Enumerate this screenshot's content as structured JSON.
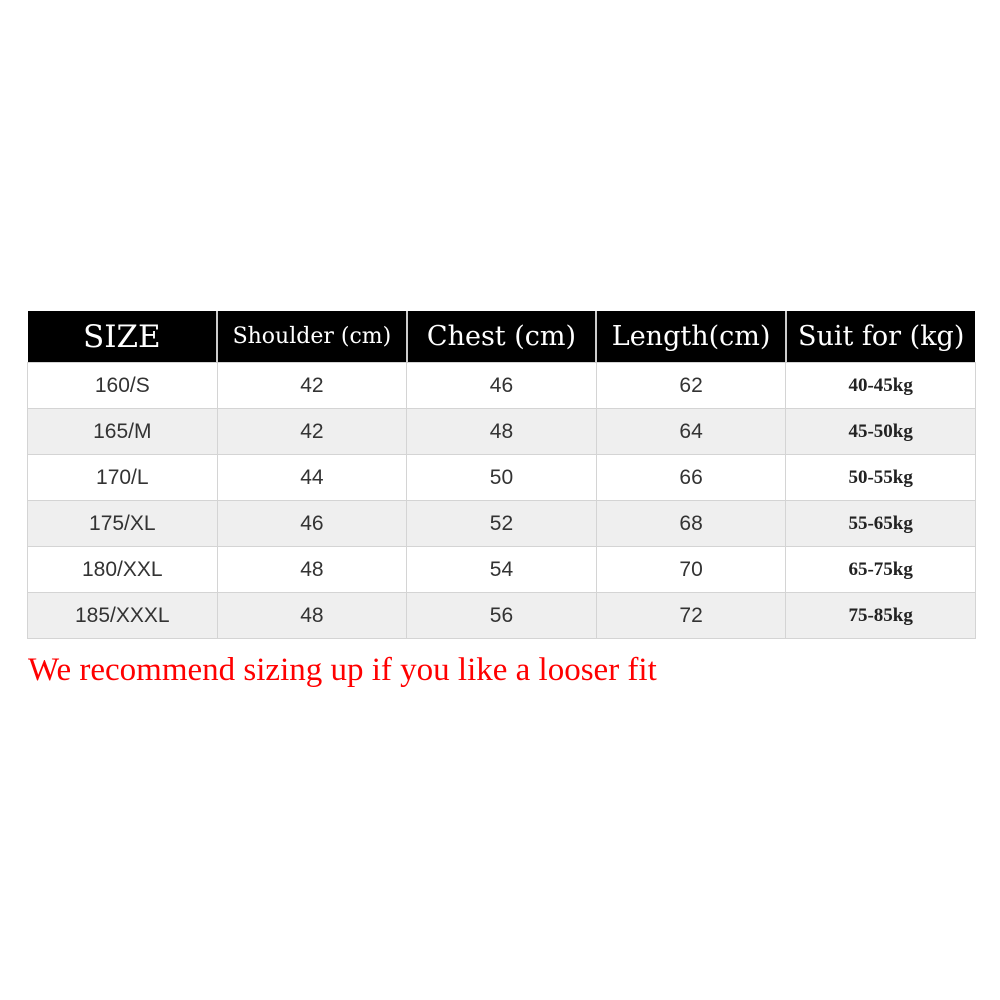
{
  "headers": [
    "SIZE",
    "Shoulder (cm)",
    "Chest (cm)",
    "Length(cm)",
    "Suit for (kg)"
  ],
  "rows": [
    [
      "160/S",
      "42",
      "46",
      "62",
      "40-45kg"
    ],
    [
      "165/M",
      "42",
      "48",
      "64",
      "45-50kg"
    ],
    [
      "170/L",
      "44",
      "50",
      "66",
      "50-55kg"
    ],
    [
      "175/XL",
      "46",
      "52",
      "68",
      "55-65kg"
    ],
    [
      "180/XXL",
      "48",
      "54",
      "70",
      "65-75kg"
    ],
    [
      "185/XXXL",
      "48",
      "56",
      "72",
      "75-85kg"
    ]
  ],
  "note": "We recommend sizing up if you like a looser fit",
  "colors": {
    "header_bg": "#000000",
    "note": "#ff0000",
    "alt_row": "#efefef"
  }
}
